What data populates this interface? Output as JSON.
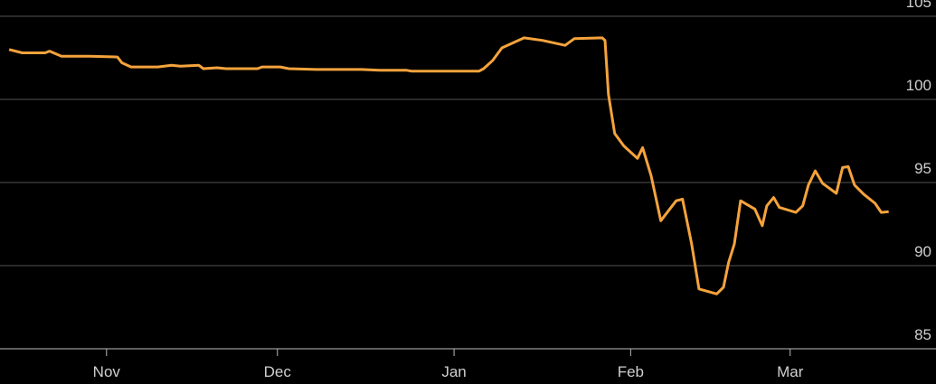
{
  "chart_data": {
    "type": "line",
    "x": [
      -17.1,
      -14.8,
      -10.8,
      -10,
      -7.9,
      -2.9,
      1.9,
      2.7,
      4.3,
      9,
      11.4,
      13,
      16.2,
      17,
      19.4,
      21,
      26.5,
      27.3,
      30.5,
      32,
      36.8,
      40,
      44.8,
      47.9,
      52.7,
      53.5,
      65.4,
      66.2,
      67.8,
      69.4,
      73.3,
      76.5,
      80.5,
      82.1,
      87,
      87.5,
      88.1,
      89.2,
      90.8,
      93.2,
      94.1,
      95.6,
      97.3,
      100,
      101.1,
      102.7,
      104,
      107.1,
      108.3,
      109.2,
      110.2,
      111.3,
      113.8,
      115.1,
      115.9,
      117.1,
      118.1,
      121,
      122.2,
      123.2,
      124.4,
      125.7,
      128.1,
      129.2,
      130.2,
      131.3,
      132.9,
      134.9,
      136,
      137.3
    ],
    "values": [
      103.0,
      102.8,
      102.8,
      102.9,
      102.6,
      102.6,
      102.55,
      102.2,
      101.95,
      101.95,
      102.05,
      102.0,
      102.05,
      101.85,
      101.9,
      101.85,
      101.85,
      101.95,
      101.95,
      101.85,
      101.8,
      101.8,
      101.8,
      101.75,
      101.75,
      101.7,
      101.7,
      101.85,
      102.35,
      103.1,
      103.7,
      103.55,
      103.25,
      103.65,
      103.7,
      103.55,
      100.3,
      97.95,
      97.2,
      96.45,
      97.1,
      95.4,
      92.7,
      93.9,
      94.0,
      91.3,
      88.6,
      88.3,
      88.7,
      90.2,
      91.3,
      93.9,
      93.4,
      92.4,
      93.6,
      94.1,
      93.5,
      93.2,
      93.6,
      94.85,
      95.7,
      94.95,
      94.35,
      95.9,
      95.95,
      94.85,
      94.3,
      93.75,
      93.2,
      93.25
    ],
    "color": "#f5a33c",
    "xlim": [
      -18.7,
      145.6
    ],
    "xticks": [
      {
        "value": 0,
        "label": "Nov"
      },
      {
        "value": 30,
        "label": "Dec"
      },
      {
        "value": 61,
        "label": "Jan"
      },
      {
        "value": 92,
        "label": "Feb"
      },
      {
        "value": 120,
        "label": "Mar"
      }
    ],
    "ylim": [
      85,
      105
    ],
    "yticks": [
      85,
      90,
      95,
      100,
      105
    ],
    "grid": true
  }
}
